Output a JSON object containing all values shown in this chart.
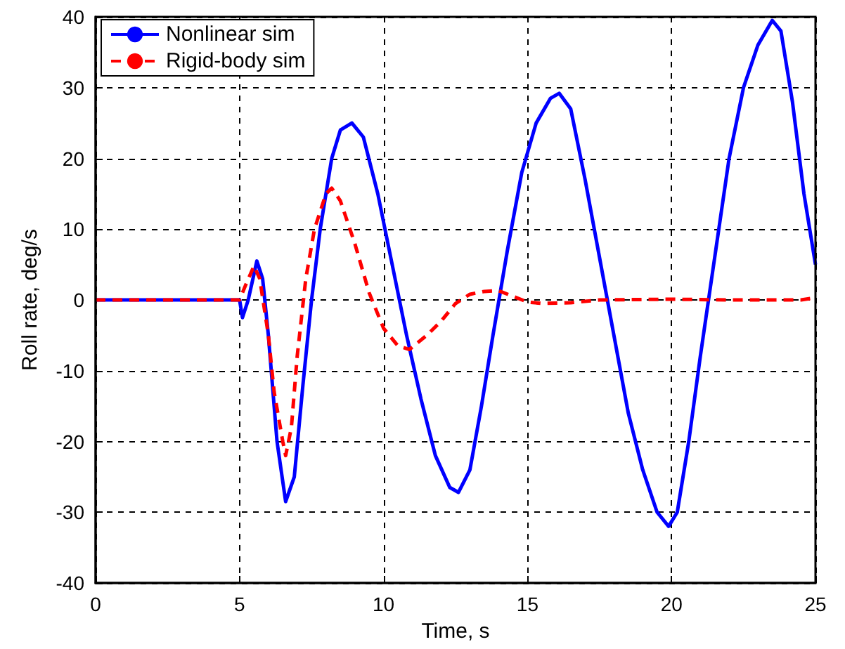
{
  "chart_data": {
    "type": "line",
    "xlabel": "Time, s",
    "ylabel": "Roll rate, deg/s",
    "xlim": [
      0,
      25
    ],
    "xticks": [
      0,
      5,
      10,
      15,
      20,
      25
    ],
    "ylim": [
      -40,
      40
    ],
    "yticks": [
      -40,
      -30,
      -20,
      -10,
      0,
      10,
      20,
      30,
      40
    ],
    "grid": true,
    "legend": "top left",
    "marker": "none",
    "series": [
      {
        "name": "Nonlinear sim",
        "color": "#0000ff",
        "line_style": "solid",
        "x": [
          0,
          1,
          2,
          3,
          4,
          5,
          5.1,
          5.3,
          5.6,
          5.8,
          6.0,
          6.3,
          6.6,
          6.9,
          7.2,
          7.5,
          7.8,
          8.2,
          8.5,
          8.9,
          9.3,
          9.8,
          10.3,
          10.8,
          11.3,
          11.8,
          12.3,
          12.6,
          13.0,
          13.4,
          13.8,
          14.3,
          14.8,
          15.3,
          15.8,
          16.1,
          16.5,
          17.0,
          17.5,
          18.0,
          18.5,
          19.0,
          19.5,
          19.9,
          20.2,
          20.6,
          21.0,
          21.5,
          22.0,
          22.5,
          23.0,
          23.5,
          23.8,
          24.2,
          24.6,
          25
        ],
        "values": [
          0,
          0,
          0,
          0,
          0,
          0,
          -2.5,
          0,
          5.5,
          3,
          -5,
          -20,
          -28.5,
          -25,
          -12,
          0,
          10,
          20,
          24,
          25,
          23,
          15,
          5,
          -5,
          -14,
          -22,
          -26.5,
          -27.2,
          -24,
          -15,
          -5,
          7,
          18,
          25,
          28.5,
          29.2,
          27,
          17,
          6,
          -5,
          -16,
          -24,
          -30,
          -32,
          -30,
          -20,
          -8,
          6,
          20,
          30,
          36,
          39.5,
          38,
          28,
          15,
          5
        ]
      },
      {
        "name": "Rigid-body sim",
        "color": "#ff0000",
        "line_style": "dashed",
        "x": [
          0,
          1,
          2,
          3,
          4,
          5,
          5.2,
          5.5,
          5.7,
          6.0,
          6.2,
          6.5,
          6.6,
          6.8,
          7.0,
          7.3,
          7.6,
          8.0,
          8.2,
          8.5,
          9.0,
          9.5,
          10.0,
          10.5,
          10.9,
          11.5,
          12.0,
          12.5,
          13.0,
          13.5,
          14.0,
          14.5,
          15.0,
          15.5,
          16.5,
          17.5,
          20,
          22,
          24.5,
          25
        ],
        "values": [
          0,
          0,
          0,
          0,
          0,
          0,
          2,
          4.8,
          3,
          -5,
          -13,
          -20,
          -22,
          -18,
          -8,
          3,
          10,
          15,
          15.8,
          14,
          8,
          1,
          -4,
          -6.5,
          -7,
          -5,
          -3,
          -0.5,
          0.8,
          1.2,
          1.3,
          0.5,
          -0.3,
          -0.5,
          -0.4,
          0,
          0.1,
          0,
          0,
          0.3
        ]
      }
    ]
  }
}
